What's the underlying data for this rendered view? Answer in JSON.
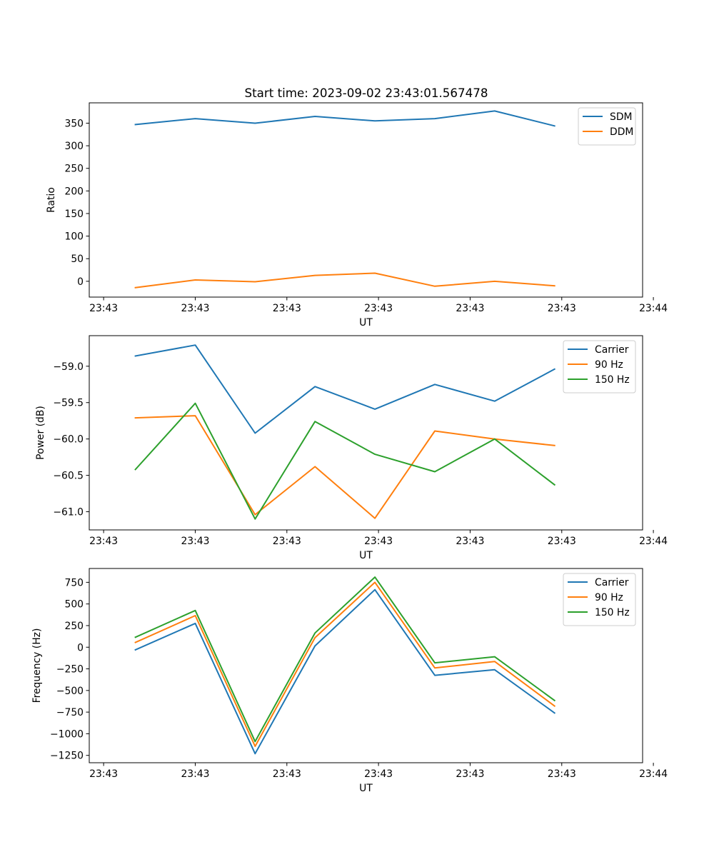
{
  "figure": {
    "title": "Start time: 2023-09-02 23:43:01.567478"
  },
  "colors": {
    "blue": "#1f77b4",
    "orange": "#ff7f0e",
    "green": "#2ca02c"
  },
  "chart_data": [
    {
      "type": "line",
      "title": "Start time: 2023-09-02 23:43:01.567478",
      "xlabel": "UT",
      "ylabel": "Ratio",
      "x": [
        1,
        2,
        3,
        4,
        5,
        6,
        7,
        8
      ],
      "xlim": [
        0.23,
        9.47
      ],
      "x_ticks": [
        0.47,
        2.0,
        3.53,
        5.06,
        6.59,
        8.12,
        9.65
      ],
      "x_tick_labels": [
        "23:43",
        "23:43",
        "23:43",
        "23:43",
        "23:43",
        "23:43",
        "23:44"
      ],
      "ylim": [
        -35,
        395
      ],
      "y_ticks": [
        0,
        50,
        100,
        150,
        200,
        250,
        300,
        350
      ],
      "y_tick_labels": [
        "0",
        "50",
        "100",
        "150",
        "200",
        "250",
        "300",
        "350"
      ],
      "legend": "top-right",
      "grid": false,
      "series": [
        {
          "name": "SDM",
          "color": "#1f77b4",
          "values": [
            347,
            360,
            350,
            365,
            355,
            360,
            377,
            344
          ]
        },
        {
          "name": "DDM",
          "color": "#ff7f0e",
          "values": [
            -14,
            3,
            -1,
            13,
            18,
            -11,
            0,
            -10
          ]
        }
      ]
    },
    {
      "type": "line",
      "title": "",
      "xlabel": "UT",
      "ylabel": "Power (dB)",
      "x": [
        1,
        2,
        3,
        4,
        5,
        6,
        7,
        8
      ],
      "xlim": [
        0.23,
        9.47
      ],
      "x_ticks": [
        0.47,
        2.0,
        3.53,
        5.06,
        6.59,
        8.12,
        9.65
      ],
      "x_tick_labels": [
        "23:43",
        "23:43",
        "23:43",
        "23:43",
        "23:43",
        "23:43",
        "23:44"
      ],
      "ylim": [
        -61.25,
        -58.58
      ],
      "y_ticks": [
        -61.0,
        -60.5,
        -60.0,
        -59.5,
        -59.0
      ],
      "y_tick_labels": [
        "−61.0",
        "−60.5",
        "−60.0",
        "−59.5",
        "−59.0"
      ],
      "legend": "top-right",
      "grid": false,
      "series": [
        {
          "name": "Carrier",
          "color": "#1f77b4",
          "values": [
            -58.86,
            -58.71,
            -59.92,
            -59.28,
            -59.59,
            -59.25,
            -59.48,
            -59.04
          ]
        },
        {
          "name": "90 Hz",
          "color": "#ff7f0e",
          "values": [
            -59.71,
            -59.68,
            -61.04,
            -60.38,
            -61.09,
            -59.89,
            -60.0,
            -60.09
          ]
        },
        {
          "name": "150 Hz",
          "color": "#2ca02c",
          "values": [
            -60.42,
            -59.51,
            -61.1,
            -59.76,
            -60.21,
            -60.45,
            -60.0,
            -60.63
          ]
        }
      ]
    },
    {
      "type": "line",
      "title": "",
      "xlabel": "UT",
      "ylabel": "Frequency (Hz)",
      "x": [
        1,
        2,
        3,
        4,
        5,
        6,
        7,
        8
      ],
      "xlim": [
        0.23,
        9.47
      ],
      "x_ticks": [
        0.47,
        2.0,
        3.53,
        5.06,
        6.59,
        8.12,
        9.65
      ],
      "x_tick_labels": [
        "23:43",
        "23:43",
        "23:43",
        "23:43",
        "23:43",
        "23:43",
        "23:44"
      ],
      "ylim": [
        -1335,
        910
      ],
      "y_ticks": [
        -1250,
        -1000,
        -750,
        -500,
        -250,
        0,
        250,
        500,
        750
      ],
      "y_tick_labels": [
        "−1250",
        "−1000",
        "−750",
        "−500",
        "−250",
        "0",
        "250",
        "500",
        "750"
      ],
      "legend": "top-right",
      "grid": false,
      "series": [
        {
          "name": "Carrier",
          "color": "#1f77b4",
          "values": [
            -30,
            275,
            -1230,
            15,
            665,
            -325,
            -260,
            -760
          ]
        },
        {
          "name": "90 Hz",
          "color": "#ff7f0e",
          "values": [
            55,
            365,
            -1145,
            110,
            750,
            -240,
            -165,
            -680
          ]
        },
        {
          "name": "150 Hz",
          "color": "#2ca02c",
          "values": [
            115,
            425,
            -1090,
            165,
            810,
            -180,
            -110,
            -615
          ]
        }
      ]
    }
  ]
}
